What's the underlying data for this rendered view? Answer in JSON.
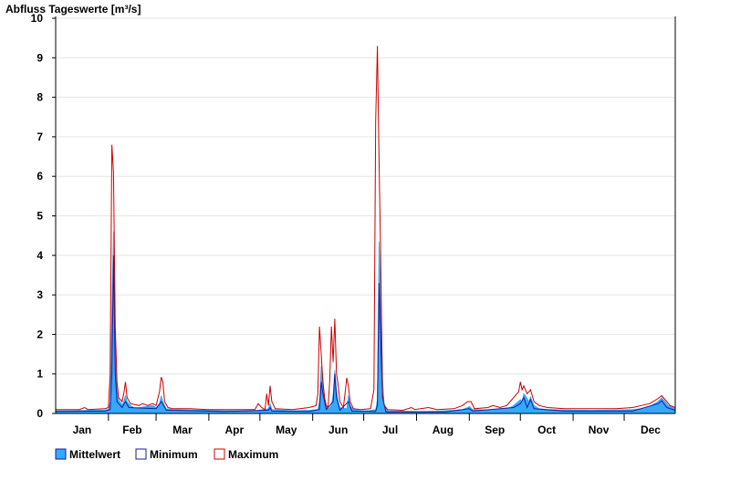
{
  "chart_data": {
    "type": "area",
    "title": "Abfluss Tageswerte [m³/s]",
    "ylim": [
      0,
      10
    ],
    "yticks": [
      "0",
      "1",
      "2",
      "3",
      "4",
      "5",
      "6",
      "7",
      "8",
      "9",
      "10"
    ],
    "months": [
      "Jan",
      "Feb",
      "Mar",
      "Apr",
      "May",
      "Jun",
      "Jul",
      "Aug",
      "Sep",
      "Oct",
      "Nov",
      "Dec"
    ],
    "x_unit": "day of year",
    "xlim": [
      1,
      365
    ],
    "grid": true,
    "legend_position": "bottom-left",
    "series": [
      {
        "name": "Mittelwert",
        "color": "#33aaff",
        "style": "filled-area",
        "points": [
          [
            1,
            0.07
          ],
          [
            10,
            0.07
          ],
          [
            20,
            0.08
          ],
          [
            30,
            0.09
          ],
          [
            32,
            0.1
          ],
          [
            33,
            0.3
          ],
          [
            34,
            2.6
          ],
          [
            35,
            4.6
          ],
          [
            36,
            1.8
          ],
          [
            37,
            0.6
          ],
          [
            38,
            0.35
          ],
          [
            40,
            0.22
          ],
          [
            41,
            0.3
          ],
          [
            42,
            0.45
          ],
          [
            43,
            0.3
          ],
          [
            45,
            0.2
          ],
          [
            48,
            0.12
          ],
          [
            50,
            0.15
          ],
          [
            55,
            0.18
          ],
          [
            58,
            0.2
          ],
          [
            60,
            0.15
          ],
          [
            62,
            0.25
          ],
          [
            63,
            0.45
          ],
          [
            64,
            0.3
          ],
          [
            66,
            0.12
          ],
          [
            70,
            0.1
          ],
          [
            80,
            0.09
          ],
          [
            90,
            0.08
          ],
          [
            100,
            0.07
          ],
          [
            115,
            0.07
          ],
          [
            120,
            0.08
          ],
          [
            126,
            0.12
          ],
          [
            127,
            0.25
          ],
          [
            128,
            0.1
          ],
          [
            140,
            0.07
          ],
          [
            150,
            0.08
          ],
          [
            155,
            0.1
          ],
          [
            156,
            0.3
          ],
          [
            157,
            1.2
          ],
          [
            158,
            0.9
          ],
          [
            159,
            0.35
          ],
          [
            160,
            0.2
          ],
          [
            161,
            0.1
          ],
          [
            163,
            0.2
          ],
          [
            164,
            0.5
          ],
          [
            165,
            1.1
          ],
          [
            166,
            0.6
          ],
          [
            167,
            0.3
          ],
          [
            168,
            0.15
          ],
          [
            172,
            0.12
          ],
          [
            173,
            0.45
          ],
          [
            174,
            0.2
          ],
          [
            176,
            0.1
          ],
          [
            180,
            0.07
          ],
          [
            185,
            0.07
          ],
          [
            189,
            0.1
          ],
          [
            190,
            0.35
          ],
          [
            191,
            4.35
          ],
          [
            192,
            3.2
          ],
          [
            193,
            0.9
          ],
          [
            194,
            0.25
          ],
          [
            196,
            0.07
          ],
          [
            205,
            0.06
          ],
          [
            215,
            0.05
          ],
          [
            225,
            0.06
          ],
          [
            235,
            0.08
          ],
          [
            240,
            0.1
          ],
          [
            243,
            0.15
          ],
          [
            244,
            0.18
          ],
          [
            246,
            0.1
          ],
          [
            255,
            0.09
          ],
          [
            260,
            0.1
          ],
          [
            268,
            0.15
          ],
          [
            270,
            0.2
          ],
          [
            274,
            0.35
          ],
          [
            275,
            0.3
          ],
          [
            276,
            0.5
          ],
          [
            277,
            0.45
          ],
          [
            279,
            0.3
          ],
          [
            280,
            0.42
          ],
          [
            282,
            0.2
          ],
          [
            285,
            0.12
          ],
          [
            290,
            0.1
          ],
          [
            300,
            0.09
          ],
          [
            315,
            0.08
          ],
          [
            330,
            0.09
          ],
          [
            340,
            0.1
          ],
          [
            345,
            0.12
          ],
          [
            350,
            0.18
          ],
          [
            355,
            0.3
          ],
          [
            357,
            0.4
          ],
          [
            359,
            0.3
          ],
          [
            361,
            0.2
          ],
          [
            365,
            0.12
          ]
        ]
      },
      {
        "name": "Minimum",
        "color": "#1a1a99",
        "style": "line",
        "points": [
          [
            1,
            0.05
          ],
          [
            30,
            0.06
          ],
          [
            33,
            0.1
          ],
          [
            34,
            1.0
          ],
          [
            35,
            4.0
          ],
          [
            36,
            1.0
          ],
          [
            37,
            0.3
          ],
          [
            40,
            0.15
          ],
          [
            42,
            0.3
          ],
          [
            44,
            0.15
          ],
          [
            60,
            0.12
          ],
          [
            63,
            0.3
          ],
          [
            66,
            0.08
          ],
          [
            100,
            0.05
          ],
          [
            126,
            0.08
          ],
          [
            127,
            0.15
          ],
          [
            128,
            0.06
          ],
          [
            150,
            0.05
          ],
          [
            156,
            0.1
          ],
          [
            157,
            0.8
          ],
          [
            158,
            0.5
          ],
          [
            160,
            0.1
          ],
          [
            164,
            0.3
          ],
          [
            165,
            1.0
          ],
          [
            166,
            0.4
          ],
          [
            168,
            0.08
          ],
          [
            173,
            0.3
          ],
          [
            175,
            0.06
          ],
          [
            189,
            0.05
          ],
          [
            190,
            0.2
          ],
          [
            191,
            3.3
          ],
          [
            192,
            1.8
          ],
          [
            193,
            0.4
          ],
          [
            195,
            0.04
          ],
          [
            230,
            0.04
          ],
          [
            244,
            0.12
          ],
          [
            246,
            0.06
          ],
          [
            270,
            0.15
          ],
          [
            274,
            0.25
          ],
          [
            276,
            0.4
          ],
          [
            278,
            0.15
          ],
          [
            280,
            0.35
          ],
          [
            282,
            0.12
          ],
          [
            300,
            0.06
          ],
          [
            340,
            0.06
          ],
          [
            355,
            0.25
          ],
          [
            357,
            0.32
          ],
          [
            360,
            0.15
          ],
          [
            365,
            0.08
          ]
        ]
      },
      {
        "name": "Maximum",
        "color": "#cc0000",
        "style": "line",
        "points": [
          [
            1,
            0.1
          ],
          [
            15,
            0.1
          ],
          [
            18,
            0.15
          ],
          [
            20,
            0.1
          ],
          [
            30,
            0.12
          ],
          [
            32,
            0.15
          ],
          [
            33,
            1.0
          ],
          [
            34,
            6.8
          ],
          [
            35,
            6.1
          ],
          [
            36,
            2.2
          ],
          [
            37,
            0.8
          ],
          [
            38,
            0.4
          ],
          [
            40,
            0.3
          ],
          [
            41,
            0.5
          ],
          [
            42,
            0.8
          ],
          [
            43,
            0.4
          ],
          [
            45,
            0.25
          ],
          [
            50,
            0.2
          ],
          [
            52,
            0.25
          ],
          [
            55,
            0.2
          ],
          [
            58,
            0.25
          ],
          [
            60,
            0.2
          ],
          [
            62,
            0.55
          ],
          [
            63,
            0.92
          ],
          [
            64,
            0.8
          ],
          [
            65,
            0.3
          ],
          [
            67,
            0.15
          ],
          [
            70,
            0.12
          ],
          [
            80,
            0.12
          ],
          [
            90,
            0.1
          ],
          [
            100,
            0.1
          ],
          [
            110,
            0.1
          ],
          [
            118,
            0.1
          ],
          [
            120,
            0.25
          ],
          [
            122,
            0.15
          ],
          [
            124,
            0.1
          ],
          [
            125,
            0.5
          ],
          [
            126,
            0.2
          ],
          [
            127,
            0.7
          ],
          [
            128,
            0.3
          ],
          [
            130,
            0.12
          ],
          [
            140,
            0.1
          ],
          [
            150,
            0.15
          ],
          [
            154,
            0.2
          ],
          [
            155,
            0.5
          ],
          [
            156,
            2.2
          ],
          [
            157,
            1.5
          ],
          [
            158,
            0.8
          ],
          [
            159,
            0.4
          ],
          [
            160,
            0.2
          ],
          [
            161,
            0.15
          ],
          [
            162,
            0.8
          ],
          [
            163,
            2.2
          ],
          [
            164,
            1.3
          ],
          [
            165,
            2.4
          ],
          [
            166,
            1.0
          ],
          [
            167,
            0.7
          ],
          [
            168,
            0.3
          ],
          [
            170,
            0.15
          ],
          [
            171,
            0.5
          ],
          [
            172,
            0.9
          ],
          [
            173,
            0.7
          ],
          [
            174,
            0.3
          ],
          [
            176,
            0.12
          ],
          [
            180,
            0.1
          ],
          [
            186,
            0.12
          ],
          [
            188,
            0.6
          ],
          [
            189,
            7.4
          ],
          [
            190,
            9.3
          ],
          [
            191,
            6.4
          ],
          [
            192,
            3.8
          ],
          [
            193,
            0.5
          ],
          [
            194,
            0.2
          ],
          [
            196,
            0.1
          ],
          [
            205,
            0.08
          ],
          [
            210,
            0.15
          ],
          [
            212,
            0.1
          ],
          [
            220,
            0.15
          ],
          [
            225,
            0.1
          ],
          [
            235,
            0.12
          ],
          [
            240,
            0.2
          ],
          [
            243,
            0.3
          ],
          [
            245,
            0.3
          ],
          [
            247,
            0.12
          ],
          [
            255,
            0.15
          ],
          [
            258,
            0.2
          ],
          [
            262,
            0.15
          ],
          [
            266,
            0.2
          ],
          [
            268,
            0.3
          ],
          [
            270,
            0.4
          ],
          [
            273,
            0.55
          ],
          [
            274,
            0.8
          ],
          [
            275,
            0.6
          ],
          [
            276,
            0.7
          ],
          [
            278,
            0.5
          ],
          [
            280,
            0.6
          ],
          [
            282,
            0.3
          ],
          [
            285,
            0.2
          ],
          [
            290,
            0.15
          ],
          [
            300,
            0.12
          ],
          [
            310,
            0.12
          ],
          [
            320,
            0.12
          ],
          [
            330,
            0.12
          ],
          [
            340,
            0.15
          ],
          [
            345,
            0.2
          ],
          [
            350,
            0.25
          ],
          [
            355,
            0.38
          ],
          [
            357,
            0.45
          ],
          [
            360,
            0.3
          ],
          [
            362,
            0.2
          ],
          [
            365,
            0.15
          ]
        ]
      }
    ]
  }
}
